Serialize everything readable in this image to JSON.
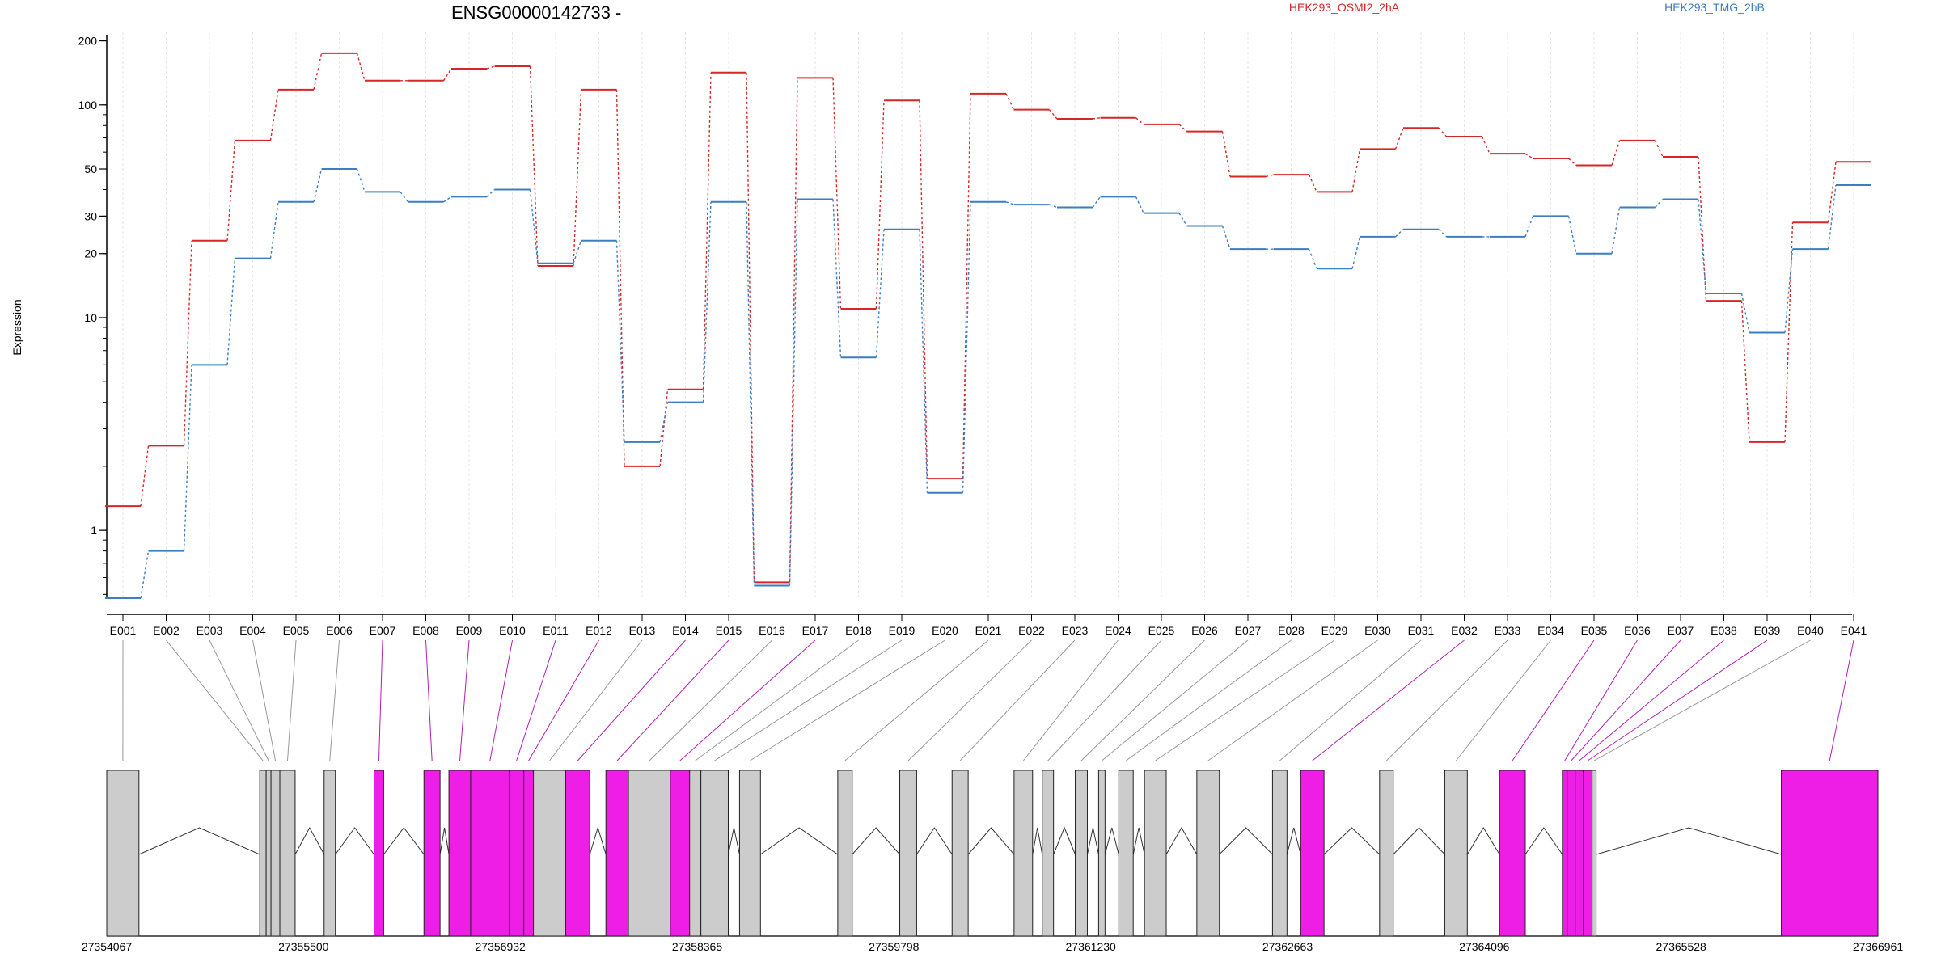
{
  "chart_data": {
    "type": "line",
    "title": "ENSG00000142733 -",
    "ylabel": "Expression",
    "y_scale": "log",
    "ylim": [
      0.48,
      210
    ],
    "y_ticks": [
      {
        "value": 1,
        "label": "1"
      },
      {
        "value": 10,
        "label": "10"
      },
      {
        "value": 20,
        "label": "20"
      },
      {
        "value": 30,
        "label": "30"
      },
      {
        "value": 50,
        "label": "50"
      },
      {
        "value": 100,
        "label": "100"
      },
      {
        "value": 200,
        "label": "200"
      }
    ],
    "legend_position": "top-right",
    "grid": "vertical-light",
    "categories": [
      "E001",
      "E002",
      "E003",
      "E004",
      "E005",
      "E006",
      "E007",
      "E008",
      "E009",
      "E010",
      "E011",
      "E012",
      "E013",
      "E014",
      "E015",
      "E016",
      "E017",
      "E018",
      "E019",
      "E020",
      "E021",
      "E022",
      "E023",
      "E024",
      "E025",
      "E026",
      "E027",
      "E028",
      "E029",
      "E030",
      "E031",
      "E032",
      "E033",
      "E034",
      "E035",
      "E036",
      "E037",
      "E038",
      "E039",
      "E040",
      "E041"
    ],
    "series": [
      {
        "name": "HEK293_OSMI2_2hA",
        "color": "#d62728",
        "values": [
          1.3,
          2.5,
          23,
          68,
          118,
          175,
          130,
          130,
          148,
          152,
          17.5,
          118,
          2.0,
          4.6,
          142,
          0.57,
          134,
          11,
          105,
          1.75,
          113,
          95,
          86,
          87,
          81,
          75,
          46,
          47,
          39,
          62,
          78,
          71,
          59,
          56,
          52,
          68,
          57,
          12,
          2.6,
          28,
          54
        ]
      },
      {
        "name": "HEK293_TMG_2hB",
        "color": "#3a7fc1",
        "values": [
          0.48,
          0.8,
          6.0,
          19,
          35,
          50,
          39,
          35,
          37,
          40,
          18,
          23,
          2.6,
          4.0,
          35,
          0.55,
          36,
          6.5,
          26,
          1.5,
          35,
          34,
          33,
          37,
          31,
          27,
          21,
          21,
          17,
          24,
          26,
          24,
          24,
          30,
          20,
          33,
          36,
          13,
          8.5,
          21,
          42
        ]
      }
    ],
    "gene_model": {
      "coordinate_ticks": [
        "27354067",
        "27355500",
        "27356932",
        "27358365",
        "27359798",
        "27361230",
        "27362663",
        "27364096",
        "27365528",
        "27366961"
      ],
      "highlight_color": "#ee1ee6",
      "base_color": "#cccccc",
      "exons": [
        {
          "id": "E001",
          "start": 0,
          "end": 40,
          "highlight": false
        },
        {
          "id": "E002",
          "start": 190,
          "end": 198,
          "highlight": false
        },
        {
          "id": "E003",
          "start": 198,
          "end": 204,
          "highlight": false
        },
        {
          "id": "E004",
          "start": 204,
          "end": 215,
          "highlight": false
        },
        {
          "id": "E005",
          "start": 215,
          "end": 234,
          "highlight": false
        },
        {
          "id": "E006",
          "start": 270,
          "end": 284,
          "highlight": false
        },
        {
          "id": "E007",
          "start": 332,
          "end": 344,
          "highlight": true
        },
        {
          "id": "E008",
          "start": 394,
          "end": 414,
          "highlight": true
        },
        {
          "id": "E009",
          "start": 425,
          "end": 452,
          "highlight": true
        },
        {
          "id": "E010",
          "start": 452,
          "end": 500,
          "highlight": true
        },
        {
          "id": "E011",
          "start": 500,
          "end": 518,
          "highlight": true
        },
        {
          "id": "E012",
          "start": 518,
          "end": 530,
          "highlight": true
        },
        {
          "id": "E013",
          "start": 530,
          "end": 570,
          "highlight": false
        },
        {
          "id": "E014",
          "start": 570,
          "end": 600,
          "highlight": true
        },
        {
          "id": "E015",
          "start": 620,
          "end": 648,
          "highlight": true
        },
        {
          "id": "E016",
          "start": 648,
          "end": 700,
          "highlight": false
        },
        {
          "id": "E017",
          "start": 700,
          "end": 724,
          "highlight": true
        },
        {
          "id": "E018",
          "start": 724,
          "end": 738,
          "highlight": false
        },
        {
          "id": "E019",
          "start": 738,
          "end": 772,
          "highlight": false
        },
        {
          "id": "E020",
          "start": 786,
          "end": 812,
          "highlight": false
        },
        {
          "id": "E021",
          "start": 908,
          "end": 926,
          "highlight": false
        },
        {
          "id": "E022",
          "start": 985,
          "end": 1006,
          "highlight": false
        },
        {
          "id": "E023",
          "start": 1050,
          "end": 1070,
          "highlight": false
        },
        {
          "id": "E024",
          "start": 1127,
          "end": 1150,
          "highlight": false
        },
        {
          "id": "E025",
          "start": 1162,
          "end": 1176,
          "highlight": false
        },
        {
          "id": "E026",
          "start": 1203,
          "end": 1218,
          "highlight": false
        },
        {
          "id": "E027",
          "start": 1232,
          "end": 1240,
          "highlight": false
        },
        {
          "id": "E028",
          "start": 1257,
          "end": 1275,
          "highlight": false
        },
        {
          "id": "E029",
          "start": 1289,
          "end": 1316,
          "highlight": false
        },
        {
          "id": "E030",
          "start": 1354,
          "end": 1382,
          "highlight": false
        },
        {
          "id": "E031",
          "start": 1448,
          "end": 1466,
          "highlight": false
        },
        {
          "id": "E032",
          "start": 1483,
          "end": 1512,
          "highlight": true
        },
        {
          "id": "E033",
          "start": 1581,
          "end": 1598,
          "highlight": false
        },
        {
          "id": "E034",
          "start": 1662,
          "end": 1690,
          "highlight": false
        },
        {
          "id": "E035",
          "start": 1730,
          "end": 1762,
          "highlight": true
        },
        {
          "id": "E036",
          "start": 1808,
          "end": 1814,
          "highlight": true
        },
        {
          "id": "E037",
          "start": 1814,
          "end": 1824,
          "highlight": true
        },
        {
          "id": "E038",
          "start": 1824,
          "end": 1834,
          "highlight": true
        },
        {
          "id": "E039",
          "start": 1834,
          "end": 1845,
          "highlight": true
        },
        {
          "id": "E040",
          "start": 1845,
          "end": 1850,
          "highlight": false
        },
        {
          "id": "E041",
          "start": 2080,
          "end": 2200,
          "highlight": true
        }
      ]
    }
  }
}
